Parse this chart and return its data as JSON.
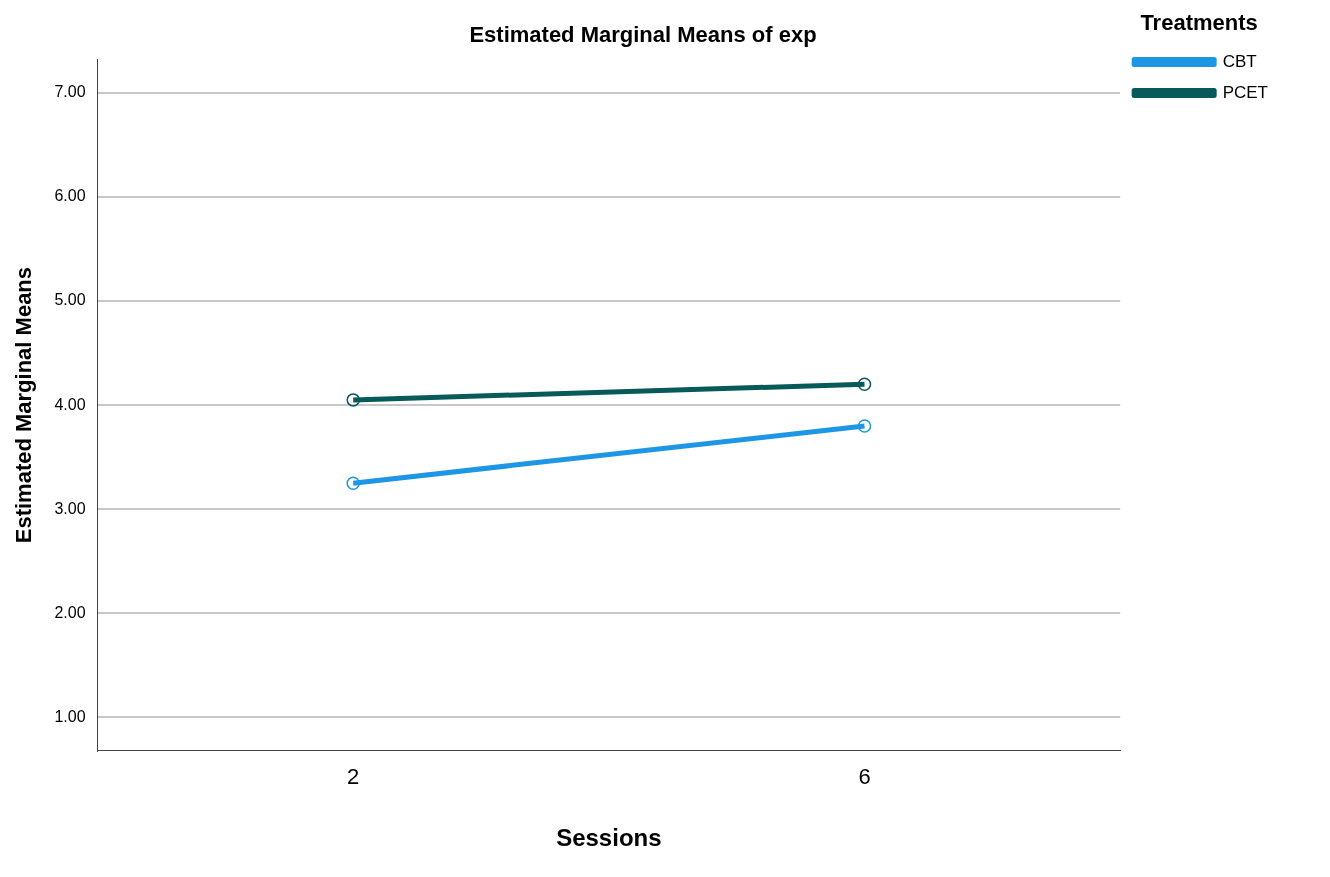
{
  "chart_data": {
    "type": "line",
    "title": "Estimated Marginal Means of exp",
    "xlabel": "Sessions",
    "ylabel": "Estimated Marginal Means",
    "legend_title": "Treatments",
    "categories": [
      "2",
      "6"
    ],
    "series": [
      {
        "name": "CBT",
        "color": "#1e96e6",
        "values": [
          3.25,
          3.8
        ]
      },
      {
        "name": "PCET",
        "color": "#08595a",
        "values": [
          4.05,
          4.2
        ]
      }
    ],
    "ylim": [
      0.68,
      7.32
    ],
    "yticks": [
      {
        "value": 1,
        "label": "1.00"
      },
      {
        "value": 2,
        "label": "2.00"
      },
      {
        "value": 3,
        "label": "3.00"
      },
      {
        "value": 4,
        "label": "4.00"
      },
      {
        "value": 5,
        "label": "5.00"
      },
      {
        "value": 6,
        "label": "6.00"
      },
      {
        "value": 7,
        "label": "7.00"
      }
    ],
    "grid": "y",
    "legend": "top right",
    "marker": "circle",
    "line_style": "solid"
  }
}
